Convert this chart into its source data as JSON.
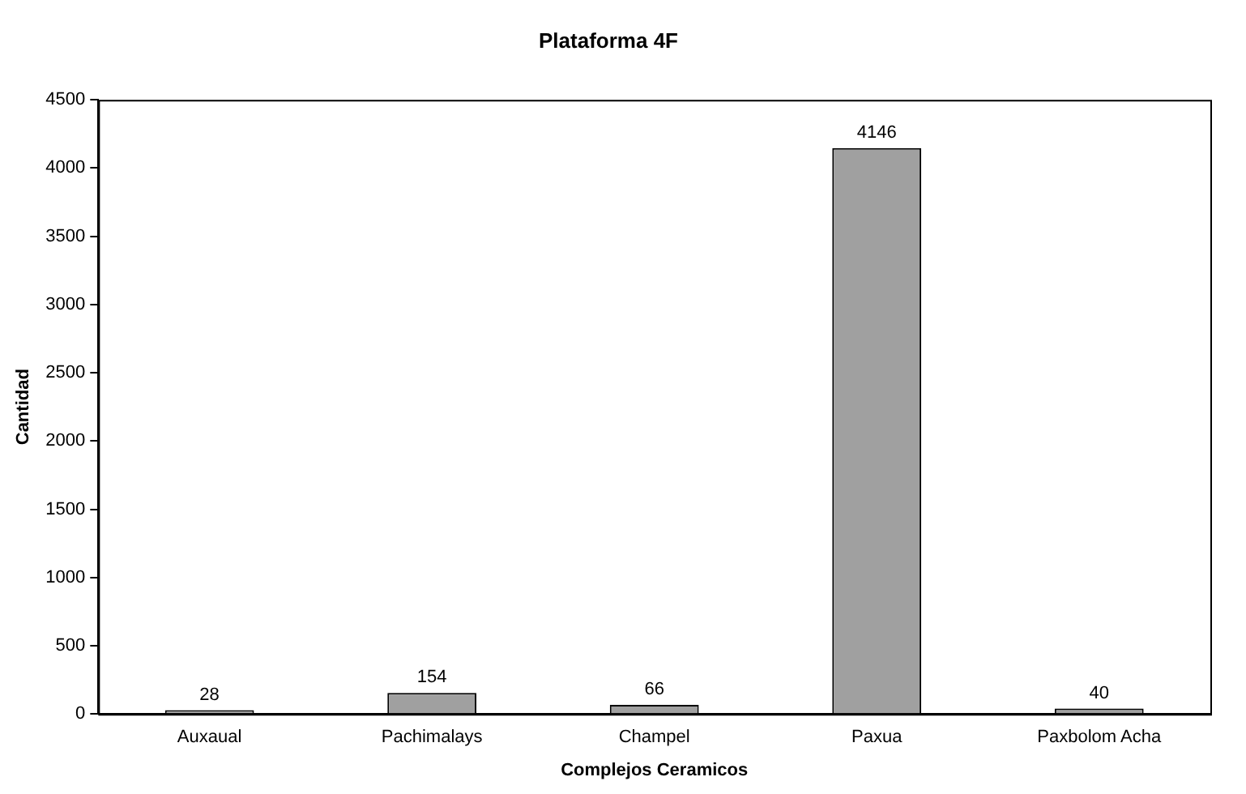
{
  "chart_data": {
    "type": "bar",
    "title": "Plataforma 4F",
    "xlabel": "Complejos Ceramicos",
    "ylabel": "Cantidad",
    "categories": [
      "Auxaual",
      "Pachimalays",
      "Champel",
      "Paxua",
      "Paxbolom Acha"
    ],
    "values": [
      28,
      154,
      66,
      4146,
      40
    ],
    "color": "#a0a0a0",
    "ylim": [
      0,
      4500
    ],
    "yticks": [
      0,
      500,
      1000,
      1500,
      2000,
      2500,
      3000,
      3500,
      4000,
      4500
    ],
    "grid": false,
    "legend": false,
    "data_labels": true
  }
}
